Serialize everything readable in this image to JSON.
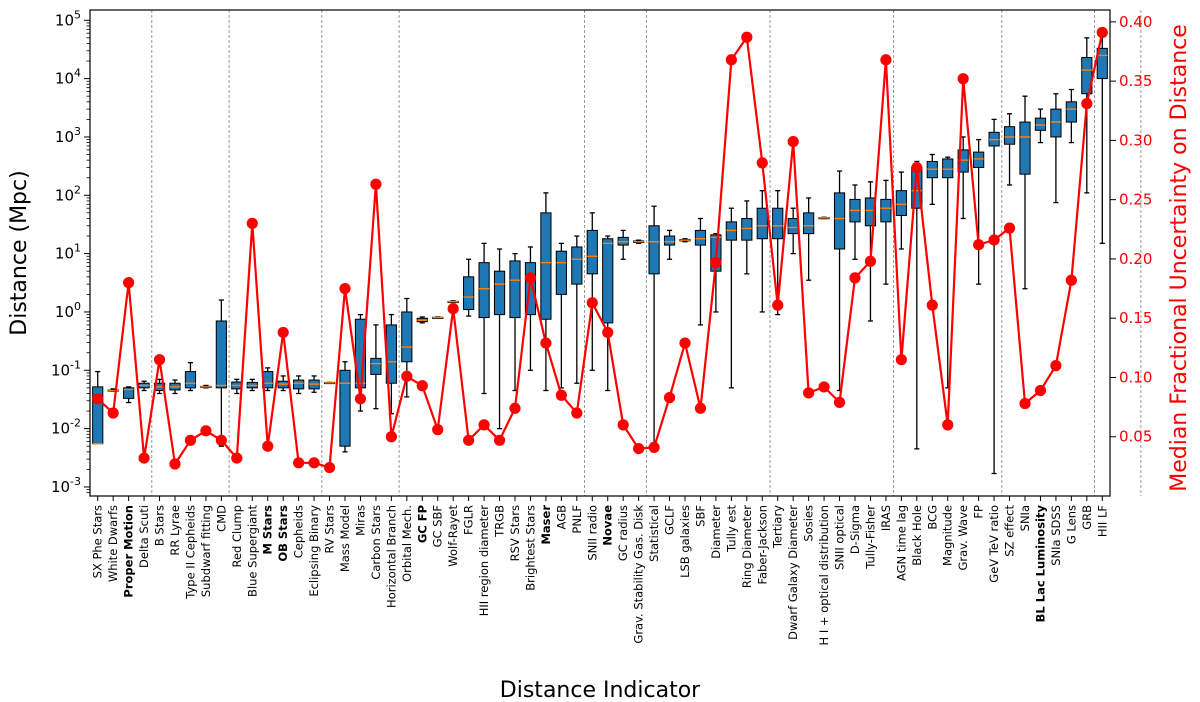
{
  "chart_data": {
    "type": "box",
    "xlabel": "Distance Indicator",
    "ylabel": "Distance (Mpc)",
    "y2label": "Median Fractional Uncertainty on Distance",
    "yscale": "log",
    "ylim": [
      0.0007,
      150000
    ],
    "y2lim": [
      0.0,
      0.41
    ],
    "y_ticks": [
      {
        "base": "10",
        "exp": "-3",
        "value": 0.001
      },
      {
        "base": "10",
        "exp": "-2",
        "value": 0.01
      },
      {
        "base": "10",
        "exp": "-1",
        "value": 0.1
      },
      {
        "base": "10",
        "exp": "0",
        "value": 1
      },
      {
        "base": "10",
        "exp": "1",
        "value": 10
      },
      {
        "base": "10",
        "exp": "2",
        "value": 100
      },
      {
        "base": "10",
        "exp": "3",
        "value": 1000
      },
      {
        "base": "10",
        "exp": "4",
        "value": 10000
      },
      {
        "base": "10",
        "exp": "5",
        "value": 100000
      }
    ],
    "y2_ticks": [
      "0.05",
      "0.10",
      "0.15",
      "0.20",
      "0.25",
      "0.30",
      "0.35",
      "0.40"
    ],
    "colors": {
      "box": "#1f77b4",
      "median": "#ff7f0e",
      "line": "#ff0000",
      "whisker": "#000000",
      "grid": "#808080"
    },
    "group_separators_after": [
      3,
      8,
      14,
      19,
      31,
      35,
      43,
      51,
      58,
      64,
      67
    ],
    "categories": [
      {
        "name": "SX Phe Stars",
        "bold": false,
        "wlo": 0.0055,
        "q1": 0.0055,
        "med": 0.0055,
        "q3": 0.052,
        "whi": 0.095,
        "unc": 0.082
      },
      {
        "name": "White Dwarfs",
        "bold": false,
        "wlo": 0.044,
        "q1": 0.044,
        "med": 0.045,
        "q3": 0.046,
        "whi": 0.048,
        "unc": 0.07
      },
      {
        "name": "Proper Motion",
        "bold": true,
        "wlo": 0.028,
        "q1": 0.033,
        "med": 0.047,
        "q3": 0.05,
        "whi": 0.052,
        "unc": 0.18
      },
      {
        "name": "Delta Scuti",
        "bold": false,
        "wlo": 0.045,
        "q1": 0.05,
        "med": 0.055,
        "q3": 0.06,
        "whi": 0.065,
        "unc": 0.032
      },
      {
        "name": "B Stars",
        "bold": false,
        "wlo": 0.04,
        "q1": 0.045,
        "med": 0.052,
        "q3": 0.06,
        "whi": 0.07,
        "unc": 0.115
      },
      {
        "name": "RR Lyrae",
        "bold": false,
        "wlo": 0.04,
        "q1": 0.046,
        "med": 0.052,
        "q3": 0.06,
        "whi": 0.068,
        "unc": 0.027
      },
      {
        "name": "Type II Cepheids",
        "bold": false,
        "wlo": 0.045,
        "q1": 0.05,
        "med": 0.06,
        "q3": 0.095,
        "whi": 0.135,
        "unc": 0.047
      },
      {
        "name": "Subdwarf fitting",
        "bold": false,
        "wlo": 0.05,
        "q1": 0.051,
        "med": 0.052,
        "q3": 0.053,
        "whi": 0.055,
        "unc": 0.055
      },
      {
        "name": "CMD",
        "bold": false,
        "wlo": 0.005,
        "q1": 0.05,
        "med": 0.055,
        "q3": 0.7,
        "whi": 1.6,
        "unc": 0.047
      },
      {
        "name": "Red Clump",
        "bold": false,
        "wlo": 0.04,
        "q1": 0.048,
        "med": 0.055,
        "q3": 0.063,
        "whi": 0.07,
        "unc": 0.032
      },
      {
        "name": "Blue Supergiant",
        "bold": false,
        "wlo": 0.045,
        "q1": 0.05,
        "med": 0.055,
        "q3": 0.062,
        "whi": 0.07,
        "unc": 0.23
      },
      {
        "name": "M Stars",
        "bold": true,
        "wlo": 0.045,
        "q1": 0.05,
        "med": 0.06,
        "q3": 0.095,
        "whi": 0.11,
        "unc": 0.042
      },
      {
        "name": "OB Stars",
        "bold": true,
        "wlo": 0.045,
        "q1": 0.05,
        "med": 0.058,
        "q3": 0.065,
        "whi": 0.08,
        "unc": 0.138
      },
      {
        "name": "Cepheids",
        "bold": false,
        "wlo": 0.04,
        "q1": 0.048,
        "med": 0.06,
        "q3": 0.068,
        "whi": 0.08,
        "unc": 0.028
      },
      {
        "name": "Eclipsing Binary",
        "bold": false,
        "wlo": 0.042,
        "q1": 0.048,
        "med": 0.058,
        "q3": 0.068,
        "whi": 0.08,
        "unc": 0.028
      },
      {
        "name": "RV Stars",
        "bold": false,
        "wlo": 0.06,
        "q1": 0.06,
        "med": 0.061,
        "q3": 0.062,
        "whi": 0.062,
        "unc": 0.024
      },
      {
        "name": "Mass Model",
        "bold": false,
        "wlo": 0.004,
        "q1": 0.005,
        "med": 0.06,
        "q3": 0.1,
        "whi": 0.14,
        "unc": 0.175
      },
      {
        "name": "Miras",
        "bold": false,
        "wlo": 0.02,
        "q1": 0.05,
        "med": 0.06,
        "q3": 0.75,
        "whi": 0.9,
        "unc": 0.082
      },
      {
        "name": "Carbon Stars",
        "bold": false,
        "wlo": 0.022,
        "q1": 0.085,
        "med": 0.13,
        "q3": 0.16,
        "whi": 0.6,
        "unc": 0.263
      },
      {
        "name": "Horizontal Branch",
        "bold": false,
        "wlo": 0.018,
        "q1": 0.06,
        "med": 0.14,
        "q3": 0.6,
        "whi": 0.9,
        "unc": 0.05
      },
      {
        "name": "Orbital Mech.",
        "bold": false,
        "wlo": 0.035,
        "q1": 0.14,
        "med": 0.25,
        "q3": 1.0,
        "whi": 1.7,
        "unc": 0.101
      },
      {
        "name": "GC FP",
        "bold": true,
        "wlo": 0.65,
        "q1": 0.68,
        "med": 0.72,
        "q3": 0.78,
        "whi": 0.82,
        "unc": 0.093
      },
      {
        "name": "GC SBF",
        "bold": false,
        "wlo": 0.78,
        "q1": 0.79,
        "med": 0.8,
        "q3": 0.81,
        "whi": 0.82,
        "unc": 0.056
      },
      {
        "name": "Wolf-Rayet",
        "bold": false,
        "wlo": 1.45,
        "q1": 1.48,
        "med": 1.5,
        "q3": 1.52,
        "whi": 1.55,
        "unc": 0.158
      },
      {
        "name": "FGLR",
        "bold": false,
        "wlo": 0.85,
        "q1": 1.1,
        "med": 1.8,
        "q3": 4.0,
        "whi": 8.0,
        "unc": 0.047
      },
      {
        "name": "HII region diameter",
        "bold": false,
        "wlo": 0.04,
        "q1": 0.8,
        "med": 2.5,
        "q3": 7.0,
        "whi": 15.0,
        "unc": 0.06
      },
      {
        "name": "TRGB",
        "bold": false,
        "wlo": 0.01,
        "q1": 0.9,
        "med": 3.0,
        "q3": 5.0,
        "whi": 12.0,
        "unc": 0.047
      },
      {
        "name": "RSV Stars",
        "bold": false,
        "wlo": 0.045,
        "q1": 0.8,
        "med": 3.5,
        "q3": 7.5,
        "whi": 10.0,
        "unc": 0.074
      },
      {
        "name": "Brightest Stars",
        "bold": false,
        "wlo": 0.1,
        "q1": 0.9,
        "med": 4.0,
        "q3": 7.0,
        "whi": 13.0,
        "unc": 0.184
      },
      {
        "name": "Maser",
        "bold": true,
        "wlo": 0.045,
        "q1": 0.75,
        "med": 7.0,
        "q3": 50.0,
        "whi": 110.0,
        "unc": 0.129
      },
      {
        "name": "AGB",
        "bold": false,
        "wlo": 0.05,
        "q1": 2.0,
        "med": 7.0,
        "q3": 11.0,
        "whi": 15.0,
        "unc": 0.085
      },
      {
        "name": "PNLF",
        "bold": false,
        "wlo": 0.06,
        "q1": 3.0,
        "med": 8.0,
        "q3": 13.0,
        "whi": 20.0,
        "unc": 0.07
      },
      {
        "name": "SNII radio",
        "bold": false,
        "wlo": 0.1,
        "q1": 4.5,
        "med": 9.0,
        "q3": 25.0,
        "whi": 50.0,
        "unc": 0.163
      },
      {
        "name": "Novae",
        "bold": true,
        "wlo": 0.045,
        "q1": 0.65,
        "med": 15.0,
        "q3": 18.0,
        "whi": 20.0,
        "unc": 0.138
      },
      {
        "name": "GC radius",
        "bold": false,
        "wlo": 8.0,
        "q1": 14.0,
        "med": 16.0,
        "q3": 19.0,
        "whi": 25.0,
        "unc": 0.06
      },
      {
        "name": "Grav. Stability Gas. Disk",
        "bold": false,
        "wlo": 15.0,
        "q1": 15.5,
        "med": 16.0,
        "q3": 16.5,
        "whi": 17.0,
        "unc": 0.04
      },
      {
        "name": "Statistical",
        "bold": false,
        "wlo": 0.005,
        "q1": 4.5,
        "med": 16.0,
        "q3": 30.0,
        "whi": 65.0,
        "unc": 0.041
      },
      {
        "name": "GCLF",
        "bold": false,
        "wlo": 8.0,
        "q1": 14.0,
        "med": 16.0,
        "q3": 20.0,
        "whi": 25.0,
        "unc": 0.083
      },
      {
        "name": "LSB galaxies",
        "bold": false,
        "wlo": 16.0,
        "q1": 16.5,
        "med": 17.0,
        "q3": 17.5,
        "whi": 18.0,
        "unc": 0.129
      },
      {
        "name": "SBF",
        "bold": false,
        "wlo": 0.6,
        "q1": 14.0,
        "med": 18.0,
        "q3": 25.0,
        "whi": 40.0,
        "unc": 0.074
      },
      {
        "name": "Diameter",
        "bold": false,
        "wlo": 1.0,
        "q1": 5.0,
        "med": 19.0,
        "q3": 21.0,
        "whi": 22.0,
        "unc": 0.197
      },
      {
        "name": "Tully est",
        "bold": false,
        "wlo": 0.05,
        "q1": 17.0,
        "med": 25.0,
        "q3": 35.0,
        "whi": 60.0,
        "unc": 0.368
      },
      {
        "name": "Ring Diameter",
        "bold": false,
        "wlo": 4.5,
        "q1": 17.0,
        "med": 27.0,
        "q3": 40.0,
        "whi": 80.0,
        "unc": 0.387
      },
      {
        "name": "Faber-Jackson",
        "bold": false,
        "wlo": 1.0,
        "q1": 18.0,
        "med": 30.0,
        "q3": 60.0,
        "whi": 120.0,
        "unc": 0.281
      },
      {
        "name": "Tertiary",
        "bold": false,
        "wlo": 0.9,
        "q1": 18.0,
        "med": 30.0,
        "q3": 60.0,
        "whi": 120.0,
        "unc": 0.161
      },
      {
        "name": "Dwarf Galaxy Diameter",
        "bold": false,
        "wlo": 10.0,
        "q1": 22.0,
        "med": 28.0,
        "q3": 40.0,
        "whi": 60.0,
        "unc": 0.299
      },
      {
        "name": "Sosies",
        "bold": false,
        "wlo": 3.5,
        "q1": 22.0,
        "med": 30.0,
        "q3": 50.0,
        "whi": 90.0,
        "unc": 0.087
      },
      {
        "name": "H I + optical distribution",
        "bold": false,
        "wlo": 40.0,
        "q1": 40.5,
        "med": 41.0,
        "q3": 41.5,
        "whi": 42.0,
        "unc": 0.092
      },
      {
        "name": "SNII optical",
        "bold": false,
        "wlo": 0.045,
        "q1": 12.0,
        "med": 40.0,
        "q3": 110.0,
        "whi": 260.0,
        "unc": 0.079
      },
      {
        "name": "D-Sigma",
        "bold": false,
        "wlo": 8.0,
        "q1": 35.0,
        "med": 55.0,
        "q3": 85.0,
        "whi": 150.0,
        "unc": 0.184
      },
      {
        "name": "Tully-Fisher",
        "bold": false,
        "wlo": 0.7,
        "q1": 30.0,
        "med": 55.0,
        "q3": 90.0,
        "whi": 170.0,
        "unc": 0.198
      },
      {
        "name": "IRAS",
        "bold": false,
        "wlo": 3.0,
        "q1": 35.0,
        "med": 60.0,
        "q3": 85.0,
        "whi": 180.0,
        "unc": 0.368
      },
      {
        "name": "AGN time lag",
        "bold": false,
        "wlo": 12.0,
        "q1": 45.0,
        "med": 70.0,
        "q3": 120.0,
        "whi": 250.0,
        "unc": 0.115
      },
      {
        "name": "Black Hole",
        "bold": false,
        "wlo": 0.0045,
        "q1": 60.0,
        "med": 120.0,
        "q3": 300.0,
        "whi": 380.0,
        "unc": 0.277
      },
      {
        "name": "BCG",
        "bold": false,
        "wlo": 70.0,
        "q1": 200.0,
        "med": 280.0,
        "q3": 380.0,
        "whi": 500.0,
        "unc": 0.161
      },
      {
        "name": "Magnitude",
        "bold": false,
        "wlo": 0.05,
        "q1": 200.0,
        "med": 280.0,
        "q3": 420.0,
        "whi": 450.0,
        "unc": 0.06
      },
      {
        "name": "Grav. Wave",
        "bold": false,
        "wlo": 40.0,
        "q1": 250.0,
        "med": 400.0,
        "q3": 600.0,
        "whi": 1000.0,
        "unc": 0.352
      },
      {
        "name": "FP",
        "bold": false,
        "wlo": 3.0,
        "q1": 300.0,
        "med": 420.0,
        "q3": 550.0,
        "whi": 900.0,
        "unc": 0.212
      },
      {
        "name": "GeV TeV ratio",
        "bold": false,
        "wlo": 0.0017,
        "q1": 700.0,
        "med": 900.0,
        "q3": 1200.0,
        "whi": 2000.0,
        "unc": 0.216
      },
      {
        "name": "SZ effect",
        "bold": false,
        "wlo": 150.0,
        "q1": 750.0,
        "med": 1000.0,
        "q3": 1500.0,
        "whi": 2500.0,
        "unc": 0.226
      },
      {
        "name": "SNIa",
        "bold": false,
        "wlo": 2.5,
        "q1": 230.0,
        "med": 1000.0,
        "q3": 1800.0,
        "whi": 5000.0,
        "unc": 0.078
      },
      {
        "name": "BL Lac Luminosity",
        "bold": true,
        "wlo": 800.0,
        "q1": 1300.0,
        "med": 1600.0,
        "q3": 2100.0,
        "whi": 3000.0,
        "unc": 0.089
      },
      {
        "name": "SNIa SDSS",
        "bold": false,
        "wlo": 75.0,
        "q1": 1000.0,
        "med": 1800.0,
        "q3": 3000.0,
        "whi": 5500.0,
        "unc": 0.11
      },
      {
        "name": "G Lens",
        "bold": false,
        "wlo": 800.0,
        "q1": 1800.0,
        "med": 3000.0,
        "q3": 4000.0,
        "whi": 6500.0,
        "unc": 0.182
      },
      {
        "name": "GRB",
        "bold": false,
        "wlo": 110.0,
        "q1": 5500.0,
        "med": 14000.0,
        "q3": 23000.0,
        "whi": 50000.0,
        "unc": 0.331
      },
      {
        "name": "HII LF",
        "bold": false,
        "wlo": 15.0,
        "q1": 10000.0,
        "med": 25000.0,
        "q3": 33000.0,
        "whi": 60000.0,
        "unc": 0.391
      }
    ]
  }
}
